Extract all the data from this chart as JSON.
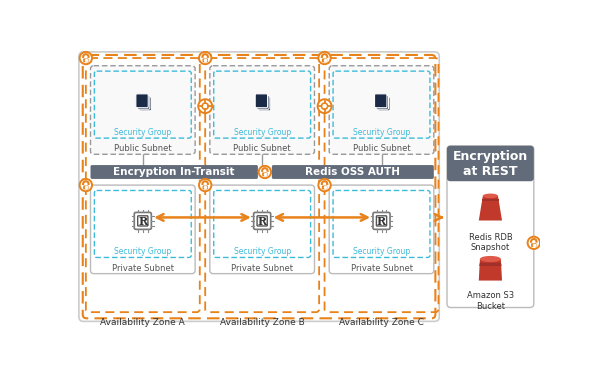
{
  "bg_color": "#ffffff",
  "orange_dash_color": "#E8821A",
  "blue_dash_color": "#3DBBDB",
  "gray_dash_color": "#888888",
  "dark_navy": "#1B2A47",
  "redis_red": "#C0392B",
  "lock_color": "#E8821A",
  "arrow_color": "#E8821A",
  "enc_bar_color": "#626B7A",
  "encryption_transit_label": "Encryption In-Transit",
  "redis_auth_label": "Redis OSS AUTH",
  "enc_rest_label": "Encryption\nat REST",
  "az_labels": [
    "Availability Zone A",
    "Availability Zone B",
    "Availability Zone C"
  ],
  "public_labels": [
    "Public Subnet",
    "Public Subnet",
    "Public Subnet"
  ],
  "private_labels": [
    "Private Subnet",
    "Private Subnet",
    "Private Subnet"
  ],
  "sg_label": "Security Group",
  "rdb_label": "Redis RDB\nSnapshot",
  "s3_label": "Amazon S3\nBucket"
}
